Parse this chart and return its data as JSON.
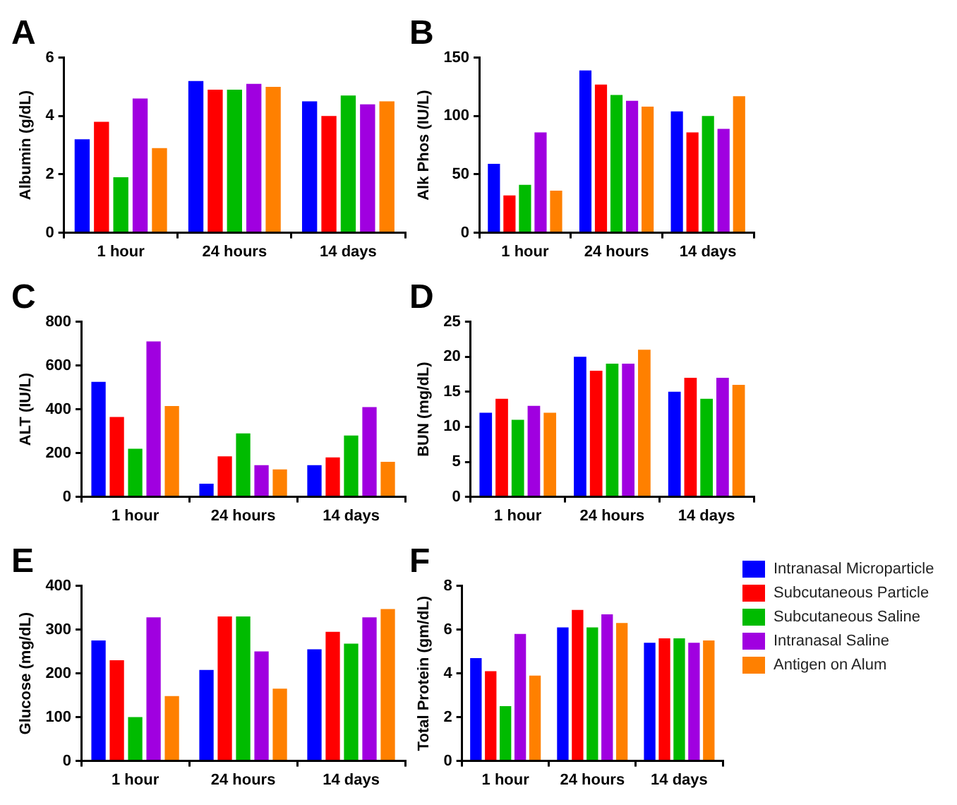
{
  "chart_data": [
    {
      "type": "bar",
      "title": "A",
      "ylabel": "Albumin (g/dL)",
      "categories": [
        "1 hour",
        "24 hours",
        "14 days"
      ],
      "ylim": [
        0,
        6
      ],
      "yticks": [
        0,
        2,
        4,
        6
      ],
      "grid": false,
      "series": [
        {
          "color": "#0000ff",
          "values": [
            3.2,
            5.2,
            4.5
          ]
        },
        {
          "color": "#ff0000",
          "values": [
            3.8,
            4.9,
            4.0
          ]
        },
        {
          "color": "#00bb00",
          "values": [
            1.9,
            4.9,
            4.7
          ]
        },
        {
          "color": "#a000e0",
          "values": [
            4.6,
            5.1,
            4.4
          ]
        },
        {
          "color": "#ff8000",
          "values": [
            2.9,
            5.0,
            4.5
          ]
        }
      ]
    },
    {
      "type": "bar",
      "title": "B",
      "ylabel": "Alk Phos (IU/L)",
      "categories": [
        "1 hour",
        "24 hours",
        "14 days"
      ],
      "ylim": [
        0,
        150
      ],
      "yticks": [
        0,
        50,
        100,
        150
      ],
      "grid": false,
      "series": [
        {
          "color": "#0000ff",
          "values": [
            59,
            139,
            104
          ]
        },
        {
          "color": "#ff0000",
          "values": [
            32,
            127,
            86
          ]
        },
        {
          "color": "#00bb00",
          "values": [
            41,
            118,
            100
          ]
        },
        {
          "color": "#a000e0",
          "values": [
            86,
            113,
            89
          ]
        },
        {
          "color": "#ff8000",
          "values": [
            36,
            108,
            117
          ]
        }
      ]
    },
    {
      "type": "bar",
      "title": "C",
      "ylabel": "ALT (IU/L)",
      "categories": [
        "1 hour",
        "24 hours",
        "14 days"
      ],
      "ylim": [
        0,
        800
      ],
      "yticks": [
        0,
        200,
        400,
        600,
        800
      ],
      "grid": false,
      "series": [
        {
          "color": "#0000ff",
          "values": [
            525,
            60,
            145
          ]
        },
        {
          "color": "#ff0000",
          "values": [
            365,
            185,
            180
          ]
        },
        {
          "color": "#00bb00",
          "values": [
            220,
            290,
            280
          ]
        },
        {
          "color": "#a000e0",
          "values": [
            710,
            145,
            410
          ]
        },
        {
          "color": "#ff8000",
          "values": [
            415,
            125,
            160
          ]
        }
      ]
    },
    {
      "type": "bar",
      "title": "D",
      "ylabel": "BUN (mg/dL)",
      "categories": [
        "1 hour",
        "24 hours",
        "14 days"
      ],
      "ylim": [
        0,
        25
      ],
      "yticks": [
        0,
        5,
        10,
        15,
        20,
        25
      ],
      "grid": false,
      "series": [
        {
          "color": "#0000ff",
          "values": [
            12,
            20,
            15
          ]
        },
        {
          "color": "#ff0000",
          "values": [
            14,
            18,
            17
          ]
        },
        {
          "color": "#00bb00",
          "values": [
            11,
            19,
            14
          ]
        },
        {
          "color": "#a000e0",
          "values": [
            13,
            19,
            17
          ]
        },
        {
          "color": "#ff8000",
          "values": [
            12,
            21,
            16
          ]
        }
      ]
    },
    {
      "type": "bar",
      "title": "E",
      "ylabel": "Glucose (mg/dL)",
      "categories": [
        "1 hour",
        "24 hours",
        "14 days"
      ],
      "ylim": [
        0,
        400
      ],
      "yticks": [
        0,
        100,
        200,
        300,
        400
      ],
      "grid": false,
      "series": [
        {
          "color": "#0000ff",
          "values": [
            275,
            208,
            255
          ]
        },
        {
          "color": "#ff0000",
          "values": [
            230,
            330,
            295
          ]
        },
        {
          "color": "#00bb00",
          "values": [
            100,
            330,
            268
          ]
        },
        {
          "color": "#a000e0",
          "values": [
            328,
            250,
            328
          ]
        },
        {
          "color": "#ff8000",
          "values": [
            148,
            165,
            347
          ]
        }
      ]
    },
    {
      "type": "bar",
      "title": "F",
      "ylabel": "Total Protein (gm/dL)",
      "categories": [
        "1 hour",
        "24 hours",
        "14 days"
      ],
      "ylim": [
        0,
        8
      ],
      "yticks": [
        0,
        2,
        4,
        6,
        8
      ],
      "grid": false,
      "legend": "right",
      "series": [
        {
          "name": "Intranasal Microparticle",
          "color": "#0000ff",
          "values": [
            4.7,
            6.1,
            5.4
          ]
        },
        {
          "name": "Subcutaneous Particle",
          "color": "#ff0000",
          "values": [
            4.1,
            6.9,
            5.6
          ]
        },
        {
          "name": "Subcutaneous Saline",
          "color": "#00bb00",
          "values": [
            2.5,
            6.1,
            5.6
          ]
        },
        {
          "name": "Intranasal Saline",
          "color": "#a000e0",
          "values": [
            5.8,
            6.7,
            5.4
          ]
        },
        {
          "name": "Antigen on Alum",
          "color": "#ff8000",
          "values": [
            3.9,
            6.3,
            5.5
          ]
        }
      ]
    }
  ]
}
